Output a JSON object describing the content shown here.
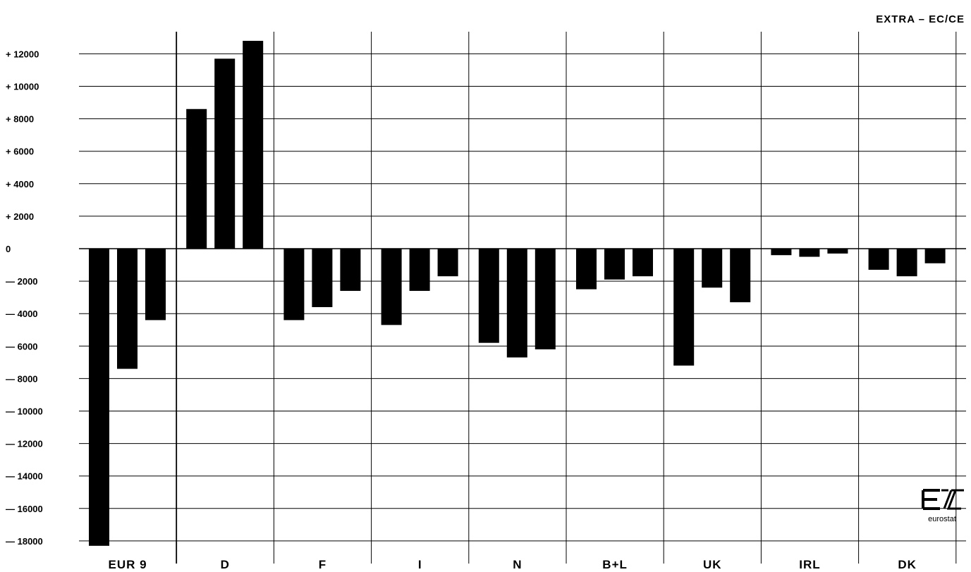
{
  "chart_data": {
    "type": "bar",
    "title": "EXTRA – EC/CE",
    "categories": [
      "EUR 9",
      "D",
      "F",
      "I",
      "N",
      "B+L",
      "UK",
      "IRL",
      "DK"
    ],
    "series": [
      {
        "values": [
          -18300,
          8600,
          -4400,
          -4700,
          -5800,
          -2500,
          -7200,
          -400,
          -1300
        ]
      },
      {
        "values": [
          -7400,
          11700,
          -3600,
          -2600,
          -6700,
          -1900,
          -2400,
          -500,
          -1700
        ]
      },
      {
        "values": [
          -4400,
          12800,
          -2600,
          -1700,
          -6200,
          -1700,
          -3300,
          -300,
          -900
        ]
      }
    ],
    "ylim": [
      -18500,
      13000
    ],
    "yticks": [
      12000,
      10000,
      8000,
      6000,
      4000,
      2000,
      0,
      -2000,
      -4000,
      -6000,
      -8000,
      -10000,
      -12000,
      -14000,
      -16000,
      -18000
    ],
    "ytick_labels": [
      "+ 12000",
      "+ 10000",
      "+ 8000",
      "+ 6000",
      "+ 4000",
      "+ 2000",
      "0",
      "— 2000",
      "— 4000",
      "— 6000",
      "— 8000",
      "— 10000",
      "— 12000",
      "— 14000",
      "— 16000",
      "— 18000"
    ],
    "grid": true,
    "bar_color": "#000000"
  },
  "logo": {
    "text": "eurostat"
  }
}
